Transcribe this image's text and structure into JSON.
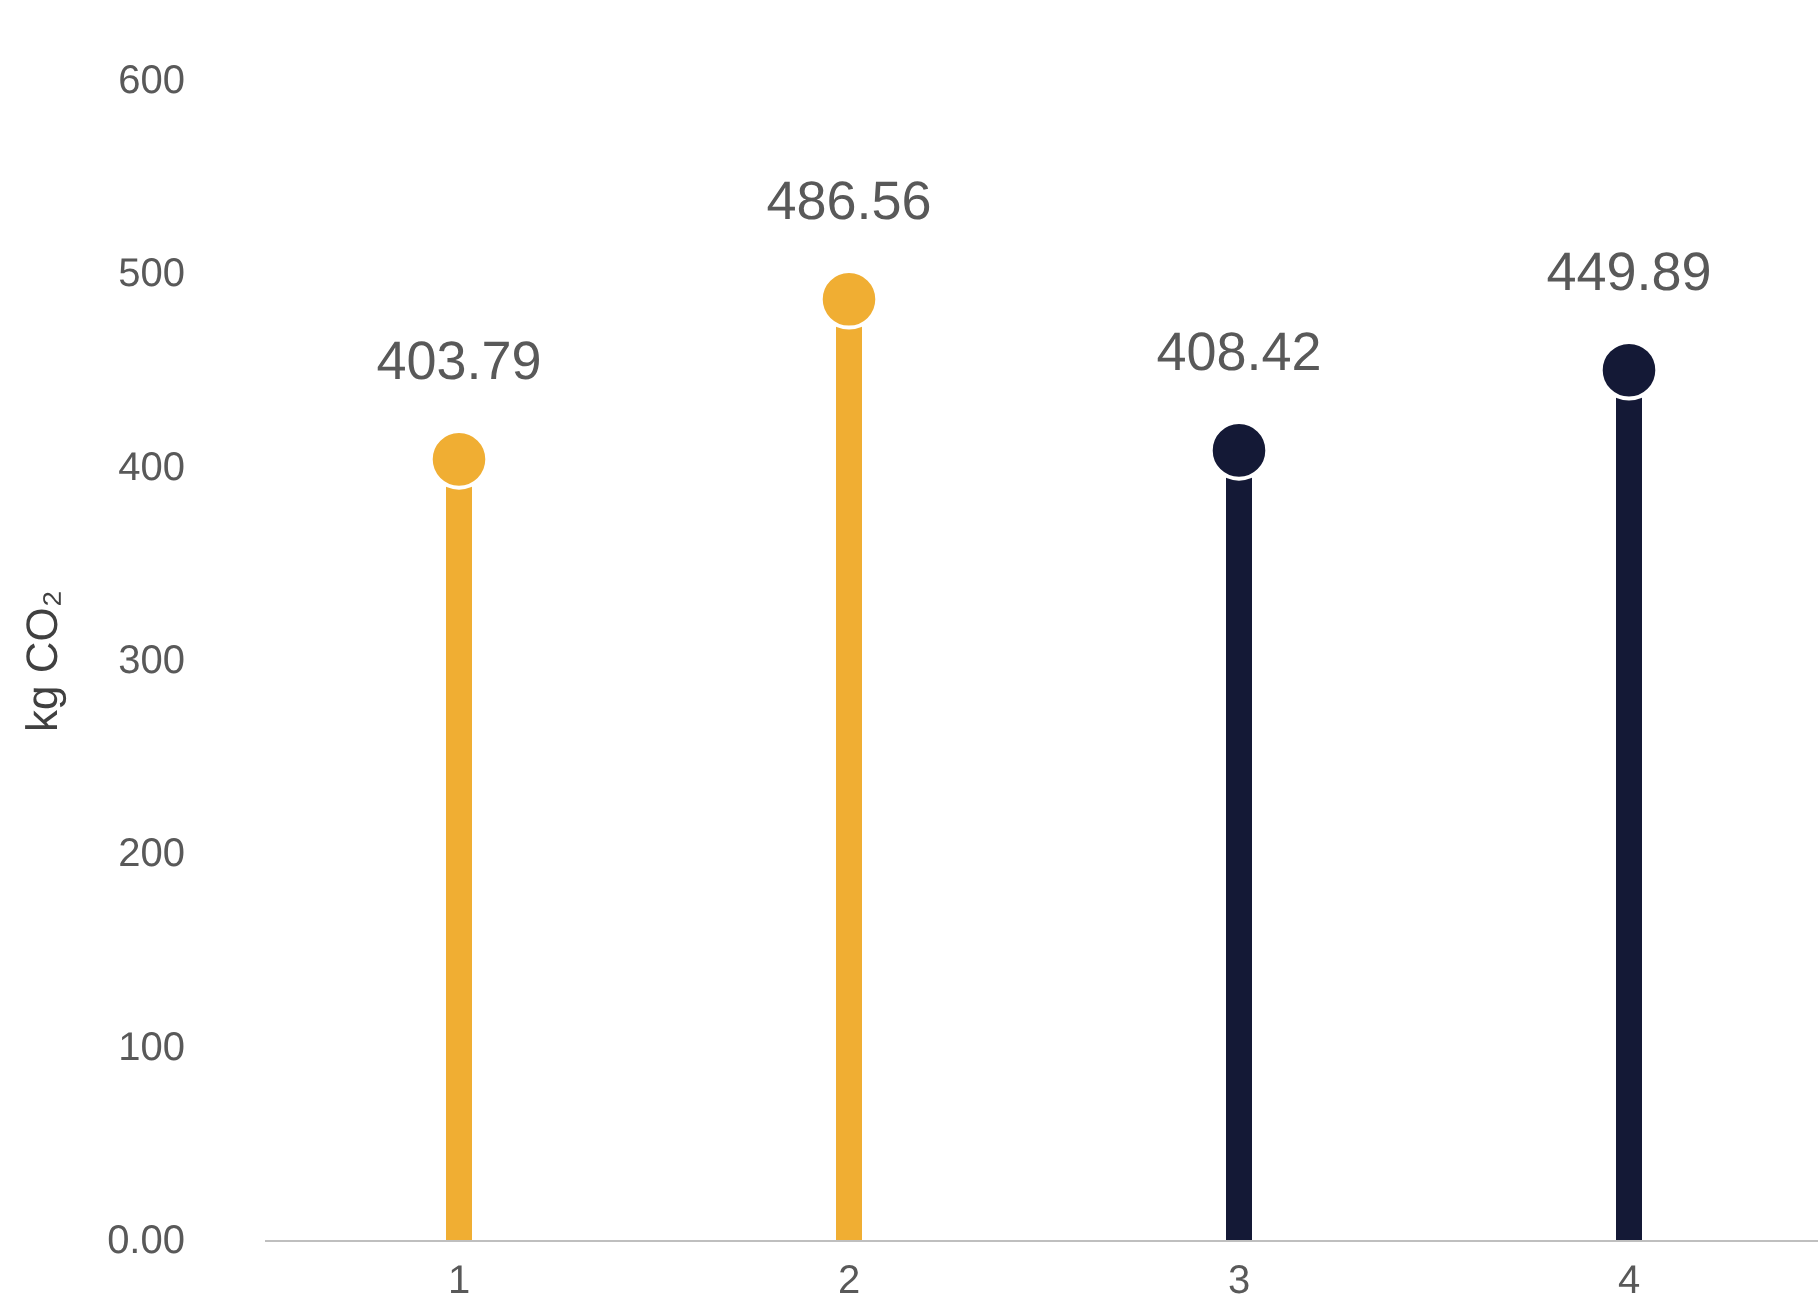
{
  "chart_data": {
    "type": "lollipop",
    "categories": [
      "1",
      "2",
      "3",
      "4"
    ],
    "values": [
      403.79,
      486.56,
      408.42,
      449.89
    ],
    "colors": [
      "#f0ae33",
      "#f0ae33",
      "#141936",
      "#141936"
    ],
    "ylabel": "kg CO₂",
    "ylim": [
      0,
      600
    ],
    "yticks": [
      {
        "value": 0,
        "label": "0.00"
      },
      100,
      200,
      300,
      400,
      500,
      600
    ],
    "data_labels": true,
    "marker": "circle",
    "grid": false
  }
}
